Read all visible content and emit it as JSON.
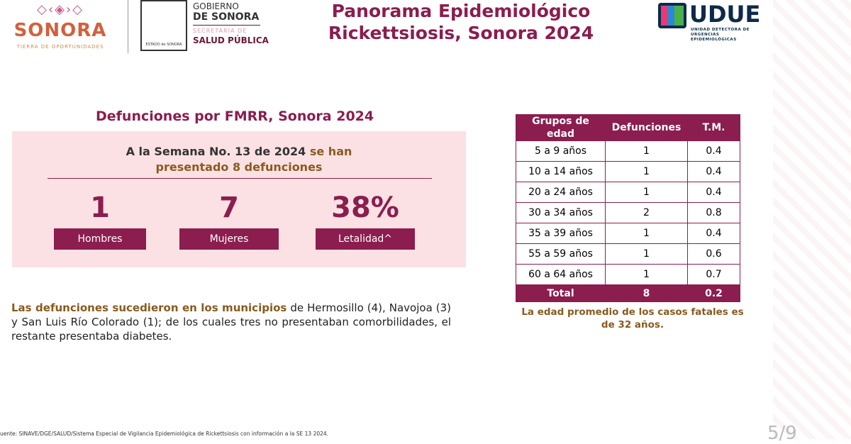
{
  "header": {
    "sonora_logo": {
      "word": "SONORA",
      "tagline": "TIERRA DE OPORTUNIDADES"
    },
    "gobierno_logo": {
      "line1": "GOBIERNO",
      "line2": "DE SONORA",
      "secretaria": "SECRETARÍA DE",
      "salud": "SALUD PÚBLICA",
      "seal_text": "ESTADO de SONORA"
    },
    "title_line1": "Panorama Epidemiológico",
    "title_line2": "Rickettsiosis, Sonora 2024",
    "udue_logo": {
      "word": "UDUE",
      "sub1": "UNIDAD DETECTORA DE",
      "sub2": "URGENCIAS EPIDEMIOLÓGICAS"
    }
  },
  "summary": {
    "title": "Defunciones por FMRR, Sonora 2024",
    "headline_part1": "A la Semana No. 13 de 2024",
    "headline_part2": "se han presentado 8 defunciones",
    "stats": [
      {
        "value": "1",
        "label": "Hombres"
      },
      {
        "value": "7",
        "label": "Mujeres"
      },
      {
        "value": "38%",
        "label": "Letalidad^"
      }
    ]
  },
  "paragraph": {
    "bold": "Las defunciones sucedieron en los municipios",
    "rest": " de Hermosillo (4), Navojoa (3) y San Luis Río Colorado (1); de los cuales tres no presentaban comorbilidades, el restante presentaba diabetes."
  },
  "table": {
    "headers": [
      "Grupos de edad",
      "Defunciones",
      "T.M."
    ],
    "rows": [
      [
        "5 a 9 años",
        "1",
        "0.4"
      ],
      [
        "10 a 14 años",
        "1",
        "0.4"
      ],
      [
        "20 a 24 años",
        "1",
        "0.4"
      ],
      [
        "30 a 34 años",
        "2",
        "0.8"
      ],
      [
        "35 a 39 años",
        "1",
        "0.4"
      ],
      [
        "55 a 59 años",
        "1",
        "0.6"
      ],
      [
        "60 a 64 años",
        "1",
        "0.7"
      ]
    ],
    "total": [
      "Total",
      "8",
      "0.2"
    ]
  },
  "age_note": "La edad promedio de los casos fatales es de 32 años.",
  "source": "uente: SINAVE/DGE/SALUD/Sistema Especial de Vigilancia Epidemiológica de Rickettsiosis con información a la SE 13 2024.",
  "page_number": "5/9",
  "colors": {
    "primary": "#8b1d4f",
    "pink_bg": "#fbe1e4",
    "gold": "#8a5a1e"
  }
}
